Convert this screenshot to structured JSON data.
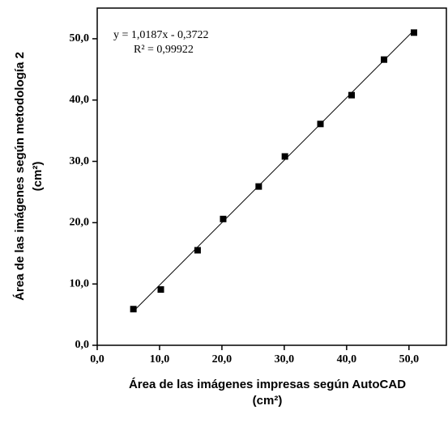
{
  "chart_data": {
    "type": "scatter",
    "x_label": [
      "Área de las imágenes impresas según AutoCAD",
      "(cm²)"
    ],
    "y_label": [
      "Área de las imágenes según metodología 2",
      "(cm²)"
    ],
    "series": [
      {
        "color": "#000000",
        "x": [
          5.8,
          10.2,
          16.1,
          20.2,
          25.9,
          30.1,
          35.8,
          40.8,
          46.0,
          50.8
        ],
        "values": [
          5.9,
          9.1,
          15.5,
          20.6,
          25.9,
          30.8,
          36.1,
          40.8,
          46.6,
          51.0
        ]
      }
    ],
    "trendline": {
      "slope": 1.0187,
      "intercept": -0.3722,
      "equation": "y = 1,0187x - 0,3722",
      "r2": "R² = 0,99922"
    },
    "xlim": [
      0,
      56
    ],
    "ylim": [
      0,
      55
    ],
    "xticks": [
      {
        "value": 0,
        "label": "0,0"
      },
      {
        "value": 10,
        "label": "10,0"
      },
      {
        "value": 20,
        "label": "20,0"
      },
      {
        "value": 30,
        "label": "30,0"
      },
      {
        "value": 40,
        "label": "40,0"
      },
      {
        "value": 50,
        "label": "50,0"
      }
    ],
    "yticks": [
      {
        "value": 0,
        "label": "0,0"
      },
      {
        "value": 10,
        "label": "10,0"
      },
      {
        "value": 20,
        "label": "20,0"
      },
      {
        "value": 30,
        "label": "30,0"
      },
      {
        "value": 40,
        "label": "40,0"
      },
      {
        "value": 50,
        "label": "50,0"
      }
    ]
  }
}
